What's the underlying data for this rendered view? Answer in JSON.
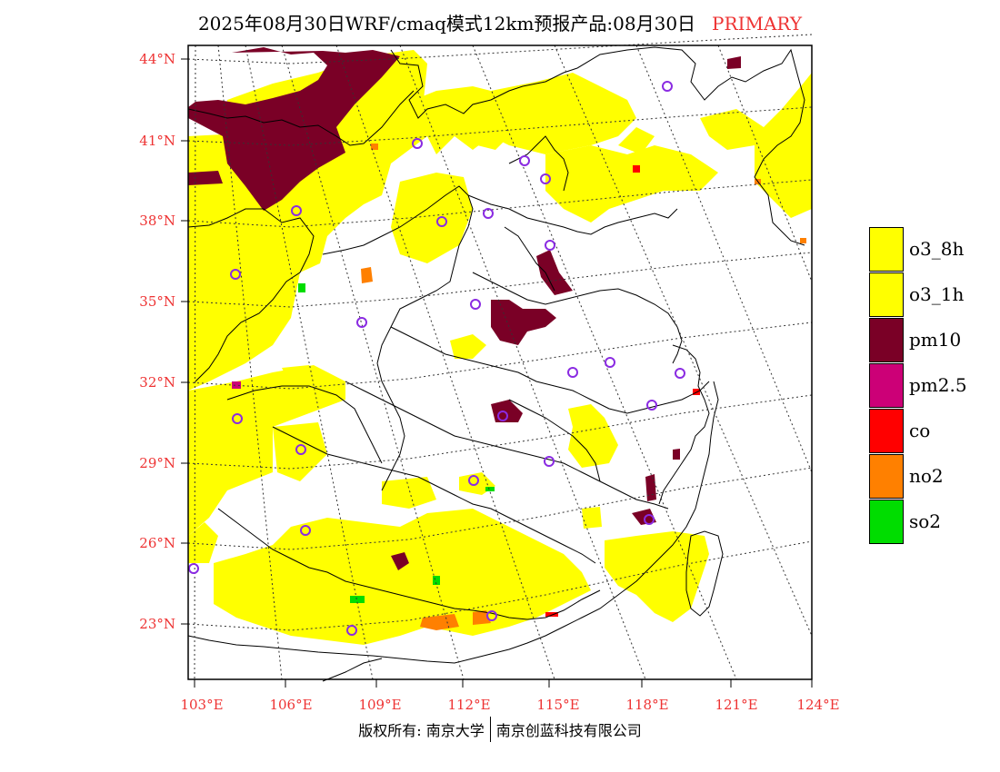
{
  "header": {
    "title": "2025年08月30日WRF/cmaq模式12km预报产品:08月30日",
    "tag": "PRIMARY"
  },
  "map": {
    "lat_labels": [
      "44°N",
      "41°N",
      "38°N",
      "35°N",
      "32°N",
      "29°N",
      "26°N",
      "23°N"
    ],
    "lon_labels": [
      "103°E",
      "106°E",
      "109°E",
      "112°E",
      "115°E",
      "118°E",
      "121°E",
      "124°E"
    ],
    "colors": {
      "o3": "#ffff00",
      "pm10": "#7a0026",
      "pm25": "#cc0077",
      "co": "#ff0000",
      "no2": "#ff8000",
      "so2": "#00dd00",
      "station": "#8a2be2",
      "axis": "#ee3333"
    }
  },
  "legend": {
    "items": [
      {
        "label": "o3_8h",
        "color": "#ffff00"
      },
      {
        "label": "o3_1h",
        "color": "#ffff00"
      },
      {
        "label": "pm10",
        "color": "#7a0026"
      },
      {
        "label": "pm2.5",
        "color": "#cc0077"
      },
      {
        "label": "co",
        "color": "#ff0000"
      },
      {
        "label": "no2",
        "color": "#ff8000"
      },
      {
        "label": "so2",
        "color": "#00dd00"
      }
    ]
  },
  "footer": {
    "copyright": "版权所有: 南京大学",
    "company": "南京创蓝科技有限公司"
  }
}
